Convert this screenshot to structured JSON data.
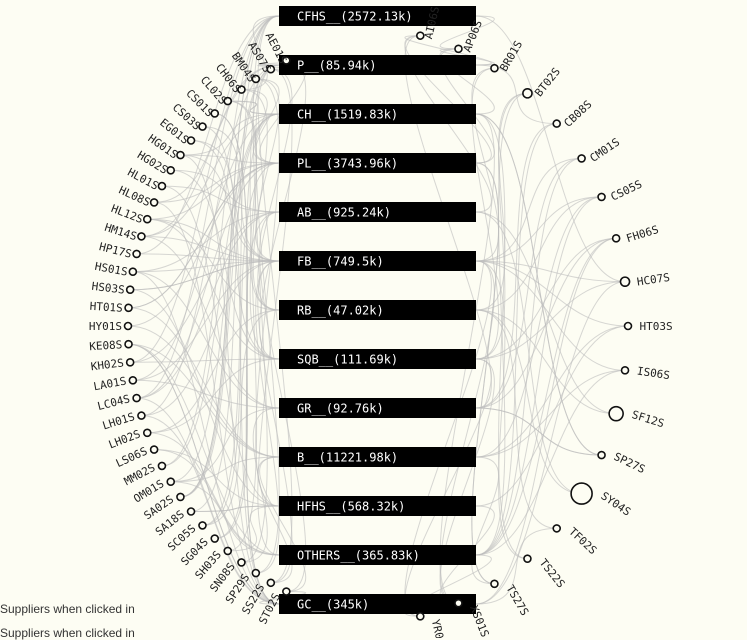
{
  "categories": [
    {
      "label": "CFHS__(2572.13k)"
    },
    {
      "label": "P__(85.94k)"
    },
    {
      "label": "CH__(1519.83k)"
    },
    {
      "label": "PL__(3743.96k)"
    },
    {
      "label": "AB__(925.24k)"
    },
    {
      "label": "FB__(749.5k)"
    },
    {
      "label": "RB__(47.02k)"
    },
    {
      "label": "SQB__(111.69k)"
    },
    {
      "label": "GR__(92.76k)"
    },
    {
      "label": "B__(11221.98k)"
    },
    {
      "label": "HFHS__(568.32k)"
    },
    {
      "label": "OTHERS__(365.83k)"
    },
    {
      "label": "GC__(345k)"
    }
  ],
  "left_suppliers": [
    "AE01S",
    "AS07S",
    "BM04S",
    "CH06S",
    "CL02S",
    "CS01S",
    "CS03S",
    "EG01S",
    "HG01S",
    "HG02S",
    "HL01S",
    "HL08S",
    "HL12S",
    "HM14S",
    "HP17S",
    "HS01S",
    "HS03S",
    "HT01S",
    "HY01S",
    "KE08S",
    "KH02S",
    "LA01S",
    "LC04S",
    "LH01S",
    "LH02S",
    "LS06S",
    "MM02S",
    "OM01S",
    "SA02S",
    "SA18S",
    "SC05S",
    "SG04S",
    "SH03S",
    "SN08S",
    "SP29S",
    "SS22S",
    "ST02S"
  ],
  "right_suppliers": [
    "AI06S",
    "AP06S",
    "BR01S",
    "BT02S",
    "CB08S",
    "CM01S",
    "CS05S",
    "FH06S",
    "HC07S",
    "HT03S",
    "IS06S",
    "SF12S",
    "SP27S",
    "SY04S",
    "TF02S",
    "TS22S",
    "TS27S",
    "XS01S",
    "YR01S"
  ],
  "right_node_sizes": [
    1,
    1,
    1,
    1.3,
    1,
    1,
    1,
    1,
    1.3,
    1,
    1,
    2,
    1,
    3,
    1,
    1,
    1,
    1,
    1
  ],
  "captions": [
    "Suppliers when clicked in",
    "Suppliers when clicked in"
  ]
}
